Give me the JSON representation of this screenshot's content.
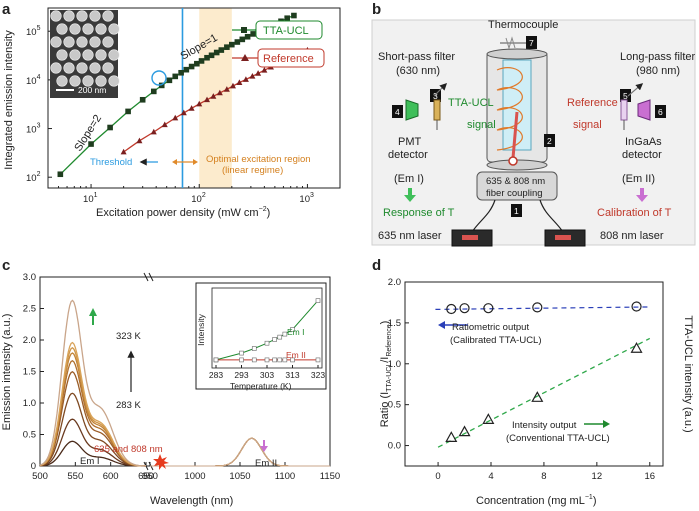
{
  "panels": {
    "a": {
      "letter": "a",
      "ylabel": "Integrated emission intensity",
      "xlabel": "Excitation power density (mW cm",
      "xlabel_sup": "−2",
      "xlabel_end": ")",
      "yticks": [
        "10",
        "10",
        "10",
        "10",
        "10"
      ],
      "ytick_exps": [
        "2",
        "3",
        "4",
        "5",
        ""
      ],
      "xticks": [
        "10",
        "10",
        "10"
      ],
      "xtick_exps": [
        "1",
        "2",
        "3"
      ],
      "legend_tta": "TTA-UCL",
      "legend_ref": "Reference",
      "slope1": "Slope=1",
      "slope2": "Slope=2",
      "scalebar": "200 nm",
      "threshold": "Threshold",
      "optimal_1": "Optimal excitation region",
      "optimal_2": "(linear regime)"
    },
    "b": {
      "letter": "b",
      "thermocouple": "Thermocouple",
      "short_pass_1": "Short-pass filter",
      "short_pass_2": "(630 nm)",
      "long_pass_1": "Long-pass filter",
      "long_pass_2": "(980 nm)",
      "tta_ucl": "TTA-UCL",
      "signal_left": "signal",
      "reference": "Reference",
      "signal_right": "signal",
      "pmt_1": "PMT",
      "pmt_2": "detector",
      "ingaas_1": "InGaAs",
      "ingaas_2": "detector",
      "em1": "(Em I)",
      "em2": "(Em II)",
      "response": "Response of T",
      "calibration": "Calibration of T",
      "fiber_1": "635 & 808 nm",
      "fiber_2": "fiber coupling",
      "laser635": "635 nm laser",
      "laser808": "808 nm laser",
      "numbers": [
        "1",
        "2",
        "3",
        "4",
        "5",
        "6",
        "7"
      ]
    },
    "c": {
      "letter": "c",
      "ylabel": "Emission intensity (a.u.)",
      "xlabel": "Wavelength (nm)",
      "yticks": [
        "0",
        "0.5",
        "1.0",
        "1.5",
        "2.0",
        "2.5",
        "3.0"
      ],
      "xticks": [
        "500",
        "550",
        "600",
        "650",
        "950",
        "1000",
        "1050",
        "1100",
        "1150"
      ],
      "temp_high": "323 K",
      "temp_low": "283 K",
      "excitation": "635 and 808 nm",
      "em1": "Em I",
      "em2": "Em II",
      "inset": {
        "ylabel": "Intensity",
        "xlabel": "Temperature (K)",
        "xticks": [
          "283",
          "293",
          "303",
          "313",
          "323"
        ],
        "em1": "Em I",
        "em2": "Em II"
      }
    },
    "d": {
      "letter": "d",
      "ylabel": "Ratio (I",
      "ylabel_sub1": "TTA-UCL",
      "ylabel_mid": "/I",
      "ylabel_sub2": "Reference",
      "ylabel_end": ")",
      "ylabel_right": "TTA-UCL intensity (a.u.)",
      "xlabel": "Concentration (mg mL",
      "xlabel_sup": "−1",
      "xlabel_end": ")",
      "yticks": [
        "0.0",
        "0.5",
        "1.0",
        "1.5",
        "2.0"
      ],
      "xticks": [
        "0",
        "4",
        "8",
        "12",
        "16"
      ],
      "ratiometric_1": "Ratiometric output",
      "ratiometric_2": "(Calibrated TTA-UCL)",
      "intensity_1": "Intensity output",
      "intensity_2": "(Conventional TTA-UCL)"
    }
  },
  "colors": {
    "green": "#1f8a2e",
    "red": "#c0392b",
    "blue": "#2b9be0",
    "orange": "#f0a040",
    "navy": "#2a3fb8"
  },
  "chart_data": [
    {
      "type": "scatter",
      "title": "",
      "xlabel": "Excitation power density (mW cm−2)",
      "ylabel": "Integrated emission intensity",
      "xscale": "log",
      "yscale": "log",
      "xlim": [
        4,
        2000
      ],
      "ylim": [
        60,
        300000
      ],
      "series": [
        {
          "name": "TTA-UCL",
          "x": [
            5.2,
            10,
            15,
            22,
            30,
            38,
            45,
            53,
            60,
            68,
            76,
            85,
            95,
            105,
            118,
            130,
            145,
            160,
            180,
            200,
            225,
            250,
            280,
            315,
            350,
            400,
            450,
            500,
            570,
            650,
            750
          ],
          "y": [
            115,
            480,
            1050,
            2250,
            3900,
            5800,
            7700,
            9800,
            11800,
            14000,
            16200,
            18800,
            21500,
            24500,
            28500,
            32000,
            36500,
            41000,
            47000,
            53000,
            60000,
            68000,
            77000,
            88000,
            98000,
            112000,
            127000,
            141000,
            160000,
            185000,
            210000
          ]
        },
        {
          "name": "Reference",
          "x": [
            20,
            28,
            38,
            48,
            60,
            72,
            85,
            100,
            118,
            135,
            155,
            180,
            205,
            235,
            270,
            310,
            350,
            400,
            460,
            530,
            610,
            700,
            800,
            900,
            1000
          ],
          "y": [
            330,
            560,
            850,
            1200,
            1650,
            2100,
            2600,
            3200,
            3900,
            4600,
            5400,
            6400,
            7500,
            8800,
            10200,
            11900,
            13600,
            15800,
            18300,
            21400,
            24600,
            28200,
            32500,
            36500,
            41000
          ]
        }
      ],
      "annotations": [
        "Slope=2",
        "Slope=1",
        "Threshold",
        "Optimal excitation region (linear regime)"
      ]
    },
    {
      "type": "line",
      "xlabel": "Wavelength (nm)",
      "ylabel": "Emission intensity (a.u.)",
      "ylim": [
        0,
        3.0
      ],
      "series_temperatures_K": [
        283,
        288,
        293,
        298,
        303,
        308,
        313,
        318,
        323
      ],
      "em1_peak_nm": 545,
      "em1_peaks": [
        0.38,
        0.72,
        1.12,
        1.45,
        1.62,
        1.74,
        1.82,
        1.9,
        2.55
      ],
      "em2_peak_nm": 1063,
      "em2_peak": 0.44
    },
    {
      "type": "line",
      "title": "inset",
      "xlabel": "Temperature (K)",
      "ylabel": "Intensity",
      "x": [
        283,
        293,
        298,
        303,
        306,
        308,
        310,
        313,
        323
      ],
      "series": [
        {
          "name": "Em I",
          "values": [
            0.08,
            0.17,
            0.23,
            0.3,
            0.35,
            0.38,
            0.42,
            0.48,
            0.86
          ]
        },
        {
          "name": "Em II",
          "values": [
            0.08,
            0.08,
            0.08,
            0.08,
            0.08,
            0.08,
            0.08,
            0.08,
            0.08
          ]
        }
      ]
    },
    {
      "type": "scatter",
      "xlabel": "Concentration (mg mL−1)",
      "ylabel": "Ratio (I TTA-UCL / I Reference)",
      "ylabel_right": "TTA-UCL intensity (a.u.)",
      "xlim": [
        -2.5,
        17
      ],
      "ylim": [
        -0.25,
        2.0
      ],
      "series": [
        {
          "name": "Ratiometric output (Calibrated TTA-UCL)",
          "x": [
            1,
            2,
            3.8,
            7.5,
            15
          ],
          "y": [
            1.67,
            1.68,
            1.68,
            1.69,
            1.7
          ]
        },
        {
          "name": "Intensity output (Conventional TTA-UCL)",
          "x": [
            1,
            2,
            3.8,
            7.5,
            15
          ],
          "y": [
            0.1,
            0.17,
            0.32,
            0.59,
            1.19
          ]
        }
      ]
    }
  ]
}
